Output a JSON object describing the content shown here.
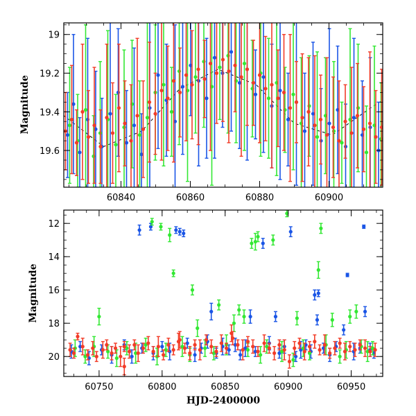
{
  "chart_data": [
    {
      "type": "scatter",
      "title": "",
      "xlabel": "",
      "ylabel": "Magnitude",
      "xlim": [
        60823.5,
        60915.5
      ],
      "ylim": [
        19.79,
        18.94
      ],
      "y_inverted": true,
      "xticks": [
        60840,
        60860,
        60880,
        60900
      ],
      "yticks": [
        19,
        19.2,
        19.4,
        19.6
      ],
      "grid": false,
      "legend": "none",
      "model_curve": {
        "description": "faint dashed black sinusoidal model",
        "color": "#000000",
        "x": [
          60823.5,
          60835,
          60846,
          60857,
          60868,
          60879,
          60890,
          60901,
          60912,
          60915.5
        ],
        "y": [
          19.42,
          19.58,
          19.5,
          19.28,
          19.18,
          19.26,
          19.46,
          19.52,
          19.38,
          19.34
        ]
      },
      "series": [
        {
          "color": "#1a55e6",
          "x": [
            60824.6,
            60826.3,
            60828.1,
            60830.4,
            60832.7,
            60834.5,
            60836.9,
            60839.2,
            60841.6,
            60843.8,
            60845.9,
            60848.3,
            60850.7,
            60853.1,
            60855.6,
            60857.8,
            60860.1,
            60862.4,
            60864.7,
            60867.0,
            60869.3,
            60871.8,
            60874.2,
            60876.4,
            60878.8,
            60881.1,
            60883.5,
            60885.9,
            60888.2,
            60890.6,
            60893.0,
            60895.4,
            60897.7,
            60900.1,
            60902.5,
            60904.8,
            60907.2,
            60909.6,
            60911.9,
            60914.3
          ],
          "y": [
            19.52,
            19.36,
            19.61,
            19.44,
            19.49,
            19.58,
            19.41,
            19.3,
            19.56,
            19.47,
            19.62,
            19.38,
            19.21,
            19.34,
            19.45,
            19.27,
            19.16,
            19.24,
            19.33,
            19.12,
            19.2,
            19.09,
            19.25,
            19.18,
            19.31,
            19.22,
            19.37,
            19.29,
            19.44,
            19.35,
            19.5,
            19.41,
            19.55,
            19.46,
            19.39,
            19.58,
            19.43,
            19.52,
            19.48,
            19.6
          ],
          "err": [
            0.22,
            0.36,
            0.18,
            0.42,
            0.3,
            0.25,
            0.48,
            0.33,
            0.27,
            0.4,
            0.21,
            0.45,
            0.38,
            0.29,
            0.5,
            0.35,
            0.26,
            0.44,
            0.31,
            0.52,
            0.28,
            0.41,
            0.34,
            0.47,
            0.23,
            0.39,
            0.32,
            0.46,
            0.24,
            0.43,
            0.3,
            0.37,
            0.27,
            0.49,
            0.33,
            0.22,
            0.41,
            0.28,
            0.36,
            0.25
          ]
        },
        {
          "color": "#33e833",
          "x": [
            60825.2,
            60827.5,
            60829.8,
            60832.1,
            60834.0,
            60836.2,
            60838.5,
            60840.9,
            60843.2,
            60845.4,
            60847.6,
            60849.9,
            60852.3,
            60854.6,
            60856.8,
            60859.2,
            60861.5,
            60863.9,
            60866.2,
            60868.5,
            60870.9,
            60873.2,
            60875.6,
            60877.9,
            60880.3,
            60882.6,
            60884.9,
            60887.3,
            60889.7,
            60892.0,
            60894.3,
            60896.6,
            60899.0,
            60901.4,
            60903.7,
            60906.1,
            60908.4,
            60910.8,
            60913.1,
            60915.0
          ],
          "y": [
            19.47,
            19.55,
            19.39,
            19.63,
            19.51,
            19.44,
            19.57,
            19.48,
            19.36,
            19.52,
            19.43,
            19.3,
            19.26,
            19.4,
            19.19,
            19.29,
            19.22,
            19.14,
            19.27,
            19.17,
            19.11,
            19.24,
            19.15,
            19.28,
            19.2,
            19.33,
            19.25,
            19.39,
            19.31,
            19.46,
            19.37,
            19.53,
            19.42,
            19.5,
            19.56,
            19.44,
            19.38,
            19.61,
            19.47,
            19.54
          ],
          "err": [
            0.3,
            0.24,
            0.44,
            0.21,
            0.37,
            0.46,
            0.26,
            0.4,
            0.33,
            0.28,
            0.49,
            0.35,
            0.42,
            0.23,
            0.38,
            0.47,
            0.29,
            0.34,
            0.51,
            0.27,
            0.4,
            0.32,
            0.45,
            0.25,
            0.43,
            0.31,
            0.48,
            0.22,
            0.39,
            0.34,
            0.26,
            0.44,
            0.3,
            0.36,
            0.21,
            0.47,
            0.33,
            0.24,
            0.41,
            0.29
          ]
        },
        {
          "color": "#f23c28",
          "x": [
            60824.0,
            60825.8,
            60827.2,
            60828.9,
            60830.6,
            60832.3,
            60834.1,
            60835.9,
            60837.6,
            60839.4,
            60841.1,
            60842.9,
            60844.7,
            60846.4,
            60848.2,
            60849.9,
            60851.7,
            60853.5,
            60855.2,
            60857.0,
            60858.8,
            60860.5,
            60862.3,
            60864.1,
            60865.8,
            60867.6,
            60869.4,
            60871.1,
            60872.9,
            60874.7,
            60876.4,
            60878.2,
            60880.0,
            60881.7,
            60883.5,
            60885.3,
            60887.0,
            60888.8,
            60890.6,
            60892.3,
            60894.1,
            60895.9,
            60897.6,
            60899.4,
            60901.2,
            60902.9,
            60904.7,
            60906.5,
            60908.2,
            60910.0,
            60911.8,
            60913.5,
            60915.2
          ],
          "y": [
            19.5,
            19.44,
            19.56,
            19.4,
            19.53,
            19.47,
            19.58,
            19.43,
            19.51,
            19.38,
            19.46,
            19.55,
            19.42,
            19.49,
            19.35,
            19.41,
            19.29,
            19.33,
            19.24,
            19.3,
            19.21,
            19.26,
            19.18,
            19.23,
            19.15,
            19.2,
            19.13,
            19.19,
            19.16,
            19.22,
            19.18,
            19.25,
            19.21,
            19.28,
            19.26,
            19.33,
            19.3,
            19.38,
            19.35,
            19.43,
            19.4,
            19.47,
            19.44,
            19.52,
            19.48,
            19.55,
            19.45,
            19.51,
            19.42,
            19.49,
            19.46,
            19.53,
            19.48
          ],
          "err": [
            0.2,
            0.28,
            0.17,
            0.35,
            0.24,
            0.3,
            0.19,
            0.38,
            0.26,
            0.33,
            0.22,
            0.29,
            0.4,
            0.25,
            0.31,
            0.21,
            0.36,
            0.27,
            0.42,
            0.23,
            0.34,
            0.28,
            0.39,
            0.2,
            0.45,
            0.26,
            0.32,
            0.37,
            0.24,
            0.41,
            0.29,
            0.22,
            0.35,
            0.27,
            0.43,
            0.25,
            0.3,
            0.38,
            0.21,
            0.33,
            0.28,
            0.36,
            0.23,
            0.4,
            0.26,
            0.31,
            0.19,
            0.34,
            0.27,
            0.22,
            0.37,
            0.24,
            0.3
          ]
        }
      ]
    },
    {
      "type": "scatter",
      "title": "",
      "xlabel": "HJD-2400000",
      "ylabel": "Magnitude",
      "xlim": [
        60722,
        60975
      ],
      "ylim": [
        21.2,
        11.2
      ],
      "y_inverted": true,
      "xticks": [
        60750,
        60800,
        60850,
        60900,
        60950
      ],
      "yticks": [
        12,
        14,
        16,
        18,
        20
      ],
      "grid": false,
      "legend": "none",
      "series": [
        {
          "color": "#1a55e6",
          "x": [
            60782,
            60791,
            60811,
            60814,
            60817,
            60880,
            60902,
            60921,
            60924,
            60947,
            60960,
            60961,
            60839,
            60870,
            60890,
            60923,
            60944,
            60728,
            60735,
            60742,
            60752,
            60760,
            60770,
            60776,
            60784,
            60793,
            60800,
            60806,
            60820,
            60826,
            60831,
            60836,
            60843,
            60848,
            60853,
            60858,
            60862,
            60866,
            60874,
            60885,
            60893,
            60897,
            60906,
            60910,
            60914,
            60918,
            60928,
            60933,
            60938,
            60952,
            60957,
            60965,
            60968
          ],
          "y": [
            12.4,
            12.2,
            12.4,
            12.5,
            12.6,
            13.2,
            12.5,
            16.3,
            16.2,
            15.1,
            12.2,
            17.3,
            17.3,
            17.6,
            17.6,
            17.8,
            18.4,
            19.7,
            19.4,
            20.1,
            19.6,
            19.9,
            19.3,
            20.0,
            19.5,
            19.8,
            19.4,
            19.7,
            19.2,
            19.9,
            19.5,
            19.1,
            19.8,
            19.4,
            19.6,
            19.3,
            19.9,
            19.5,
            19.7,
            19.2,
            19.8,
            19.4,
            20.0,
            19.6,
            19.3,
            19.7,
            19.5,
            19.9,
            19.4,
            19.7,
            19.5,
            19.6,
            19.8
          ],
          "err": [
            0.3,
            0.2,
            0.2,
            0.2,
            0.2,
            0.3,
            0.3,
            0.3,
            0.2,
            0.1,
            0.1,
            0.3,
            0.5,
            0.4,
            0.3,
            0.3,
            0.3,
            0.4,
            0.3,
            0.4,
            0.3,
            0.5,
            0.3,
            0.4,
            0.3,
            0.4,
            0.3,
            0.5,
            0.3,
            0.4,
            0.3,
            0.4,
            0.3,
            0.5,
            0.3,
            0.4,
            0.3,
            0.5,
            0.3,
            0.4,
            0.3,
            0.4,
            0.3,
            0.5,
            0.3,
            0.4,
            0.3,
            0.4,
            0.3,
            0.5,
            0.3,
            0.4,
            0.3
          ]
        },
        {
          "color": "#33e833",
          "x": [
            60750,
            60792,
            60799,
            60806,
            60809,
            60824,
            60845,
            60861,
            60865,
            60871,
            60874,
            60876,
            60888,
            60899,
            60907,
            60924,
            60926,
            60954,
            60949,
            60935,
            60828,
            60857,
            60731,
            60739,
            60746,
            60757,
            60764,
            60772,
            60779,
            60787,
            60796,
            60803,
            60816,
            60822,
            60834,
            60841,
            60851,
            60868,
            60878,
            60883,
            60895,
            60904,
            60912,
            60917,
            60930,
            60941,
            60946,
            60958,
            60963,
            60967
          ],
          "y": [
            17.6,
            11.9,
            12.2,
            12.7,
            15.0,
            16.0,
            16.9,
            17.2,
            17.6,
            13.2,
            13.1,
            12.8,
            13.0,
            11.4,
            17.7,
            14.8,
            12.3,
            17.3,
            17.6,
            17.8,
            18.3,
            18.0,
            19.5,
            20.0,
            19.4,
            19.7,
            20.1,
            19.5,
            19.8,
            19.3,
            20.0,
            19.6,
            19.4,
            19.9,
            19.5,
            19.8,
            19.3,
            19.6,
            19.9,
            19.4,
            19.7,
            20.2,
            19.5,
            19.8,
            19.3,
            20.0,
            19.6,
            19.4,
            19.7,
            19.5
          ],
          "err": [
            0.5,
            0.2,
            0.2,
            0.4,
            0.2,
            0.3,
            0.3,
            0.3,
            0.4,
            0.3,
            0.5,
            0.3,
            0.3,
            0.2,
            0.4,
            0.5,
            0.3,
            0.4,
            0.4,
            0.4,
            0.5,
            0.5,
            0.5,
            0.4,
            0.6,
            0.4,
            0.5,
            0.4,
            0.6,
            0.4,
            0.5,
            0.4,
            0.6,
            0.4,
            0.5,
            0.4,
            0.6,
            0.4,
            0.5,
            0.4,
            0.6,
            0.4,
            0.5,
            0.4,
            0.6,
            0.4,
            0.5,
            0.4,
            0.6,
            0.4
          ]
        },
        {
          "color": "#f23c28",
          "x": [
            60733,
            60727,
            60730,
            60737,
            60741,
            60745,
            60748,
            60753,
            60756,
            60760,
            60763,
            60767,
            60770,
            60774,
            60778,
            60781,
            60785,
            60789,
            60793,
            60797,
            60801,
            60805,
            60809,
            60813,
            60818,
            60822,
            60826,
            60830,
            60835,
            60839,
            60843,
            60847,
            60851,
            60856,
            60860,
            60864,
            60868,
            60872,
            60876,
            60881,
            60885,
            60889,
            60893,
            60897,
            60901,
            60905,
            60909,
            60913,
            60917,
            60921,
            60925,
            60929,
            60933,
            60937,
            60941,
            60945,
            60949,
            60953,
            60957,
            60961,
            60965,
            60969,
            60770,
            60814,
            60855
          ],
          "y": [
            18.8,
            19.6,
            19.8,
            19.4,
            19.9,
            19.5,
            20.0,
            19.6,
            19.3,
            19.8,
            19.5,
            20.0,
            19.4,
            19.7,
            19.3,
            19.8,
            19.5,
            19.2,
            19.7,
            19.4,
            19.9,
            19.3,
            19.6,
            19.1,
            19.5,
            19.8,
            19.3,
            19.6,
            19.0,
            19.4,
            19.7,
            19.2,
            19.5,
            18.9,
            19.3,
            19.6,
            19.1,
            19.4,
            19.7,
            19.2,
            19.5,
            19.8,
            19.3,
            19.6,
            20.3,
            19.5,
            19.2,
            19.7,
            19.4,
            19.1,
            19.6,
            19.3,
            19.8,
            19.5,
            19.2,
            19.7,
            19.4,
            19.6,
            19.3,
            19.5,
            19.7,
            19.6,
            20.6,
            19.0,
            18.6
          ],
          "err": [
            0.2,
            0.4,
            0.3,
            0.5,
            0.3,
            0.4,
            0.3,
            0.5,
            0.3,
            0.4,
            0.3,
            0.6,
            0.3,
            0.4,
            0.3,
            0.5,
            0.3,
            0.4,
            0.3,
            0.6,
            0.3,
            0.4,
            0.3,
            0.5,
            0.3,
            0.4,
            0.3,
            0.6,
            0.3,
            0.4,
            0.3,
            0.5,
            0.3,
            0.4,
            0.3,
            0.6,
            0.3,
            0.4,
            0.3,
            0.5,
            0.3,
            0.4,
            0.3,
            0.6,
            0.4,
            0.4,
            0.3,
            0.5,
            0.3,
            0.4,
            0.3,
            0.6,
            0.3,
            0.4,
            0.3,
            0.5,
            0.3,
            0.4,
            0.3,
            0.5,
            0.3,
            0.4,
            0.5,
            0.5,
            0.5
          ]
        }
      ]
    }
  ]
}
